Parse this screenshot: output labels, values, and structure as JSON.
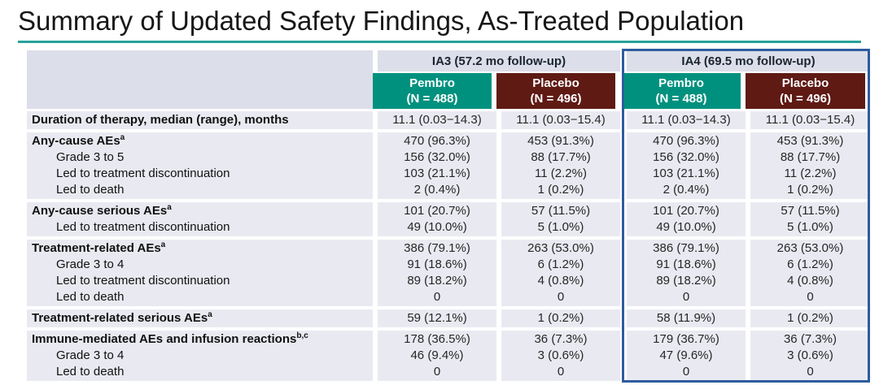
{
  "title": "Summary of Updated Safety Findings, As-Treated Population",
  "colors": {
    "pembro_teal": "#00917E",
    "placebo_maroon": "#5F1A14",
    "ia4_blue": "#2E5C9E",
    "rule_teal": "#26A29A",
    "row_bg": "#E9EAF1",
    "header_bg": "#DCDEE9"
  },
  "table": {
    "group_headers": [
      {
        "label": "IA3 (57.2 mo follow-up)"
      },
      {
        "label": "IA4 (69.5 mo follow-up)"
      }
    ],
    "arm_headers": [
      {
        "name": "Pembro",
        "n": "(N = 488)"
      },
      {
        "name": "Placebo",
        "n": "(N = 496)"
      },
      {
        "name": "Pembro",
        "n": "(N = 488)"
      },
      {
        "name": "Placebo",
        "n": "(N = 496)"
      }
    ],
    "sections": [
      {
        "rows": [
          {
            "label": "Duration of therapy, median (range), months",
            "sup": "",
            "bold": true,
            "indent": false,
            "values": [
              "11.1 (0.03−14.3)",
              "11.1 (0.03−15.4)",
              "11.1 (0.03−14.3)",
              "11.1 (0.03−15.4)"
            ]
          }
        ]
      },
      {
        "rows": [
          {
            "label": "Any-cause AEs",
            "sup": "a",
            "bold": true,
            "indent": false,
            "values": [
              "470 (96.3%)",
              "453 (91.3%)",
              "470 (96.3%)",
              "453 (91.3%)"
            ]
          },
          {
            "label": "Grade 3 to 5",
            "sup": "",
            "bold": false,
            "indent": true,
            "values": [
              "156 (32.0%)",
              "88 (17.7%)",
              "156 (32.0%)",
              "88 (17.7%)"
            ]
          },
          {
            "label": "Led to treatment discontinuation",
            "sup": "",
            "bold": false,
            "indent": true,
            "values": [
              "103 (21.1%)",
              "11 (2.2%)",
              "103 (21.1%)",
              "11 (2.2%)"
            ]
          },
          {
            "label": "Led to death",
            "sup": "",
            "bold": false,
            "indent": true,
            "values": [
              "2 (0.4%)",
              "1 (0.2%)",
              "2 (0.4%)",
              "1 (0.2%)"
            ]
          }
        ]
      },
      {
        "rows": [
          {
            "label": "Any-cause serious AEs",
            "sup": "a",
            "bold": true,
            "indent": false,
            "values": [
              "101 (20.7%)",
              "57 (11.5%)",
              "101 (20.7%)",
              "57 (11.5%)"
            ]
          },
          {
            "label": "Led to treatment discontinuation",
            "sup": "",
            "bold": false,
            "indent": true,
            "values": [
              "49 (10.0%)",
              "5 (1.0%)",
              "49 (10.0%)",
              "5 (1.0%)"
            ]
          }
        ]
      },
      {
        "rows": [
          {
            "label": "Treatment-related AEs",
            "sup": "a",
            "bold": true,
            "indent": false,
            "values": [
              "386 (79.1%)",
              "263 (53.0%)",
              "386 (79.1%)",
              "263 (53.0%)"
            ]
          },
          {
            "label": "Grade 3 to 4",
            "sup": "",
            "bold": false,
            "indent": true,
            "values": [
              "91 (18.6%)",
              "6 (1.2%)",
              "91 (18.6%)",
              "6 (1.2%)"
            ]
          },
          {
            "label": "Led to treatment discontinuation",
            "sup": "",
            "bold": false,
            "indent": true,
            "values": [
              "89 (18.2%)",
              "4 (0.8%)",
              "89 (18.2%)",
              "4 (0.8%)"
            ]
          },
          {
            "label": "Led to death",
            "sup": "",
            "bold": false,
            "indent": true,
            "values": [
              "0",
              "0",
              "0",
              "0"
            ]
          }
        ]
      },
      {
        "rows": [
          {
            "label": "Treatment-related serious AEs",
            "sup": "a",
            "bold": true,
            "indent": false,
            "values": [
              "59 (12.1%)",
              "1 (0.2%)",
              "58 (11.9%)",
              "1 (0.2%)"
            ]
          }
        ]
      },
      {
        "rows": [
          {
            "label": "Immune-mediated AEs and infusion reactions",
            "sup": "b,c",
            "bold": true,
            "indent": false,
            "values": [
              "178 (36.5%)",
              "36 (7.3%)",
              "179 (36.7%)",
              "36 (7.3%)"
            ]
          },
          {
            "label": "Grade 3 to 4",
            "sup": "",
            "bold": false,
            "indent": true,
            "values": [
              "46 (9.4%)",
              "3 (0.6%)",
              "47 (9.6%)",
              "3 (0.6%)"
            ]
          },
          {
            "label": "Led to death",
            "sup": "",
            "bold": false,
            "indent": true,
            "values": [
              "0",
              "0",
              "0",
              "0"
            ]
          }
        ]
      }
    ]
  }
}
